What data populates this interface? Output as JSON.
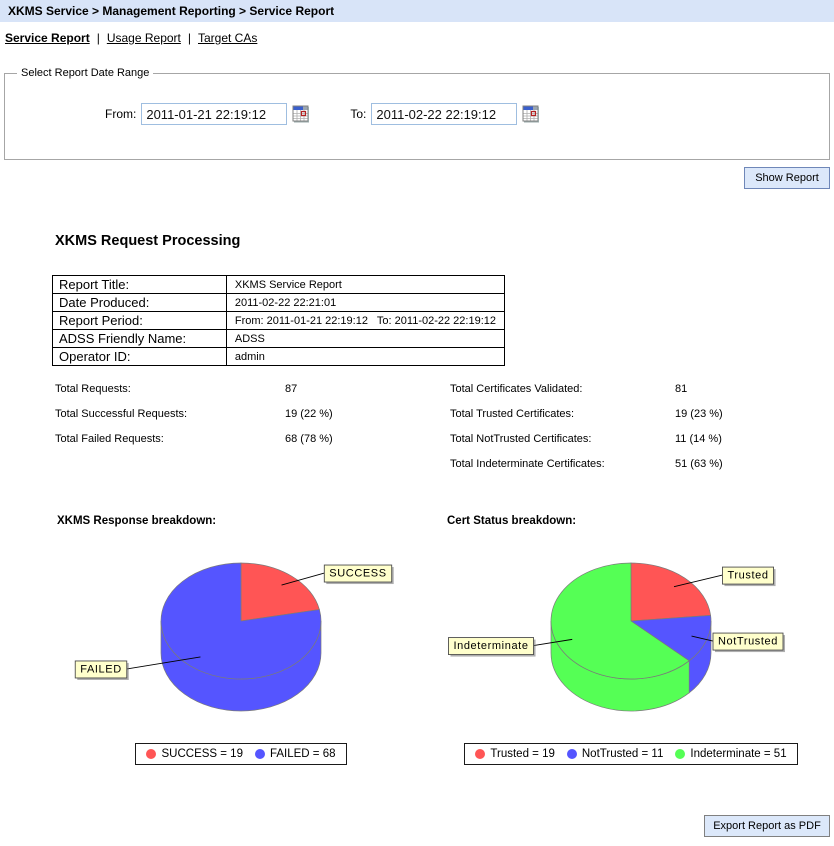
{
  "topbar": {
    "breadcrumb": "XKMS Service > Management Reporting > Service Report",
    "bg": "#D8E4F8"
  },
  "tabs": [
    {
      "label": "Service Report",
      "active": true
    },
    {
      "label": "Usage Report",
      "active": false
    },
    {
      "label": "Target CAs",
      "active": false
    }
  ],
  "tab_separator": "|",
  "date_range": {
    "legend": "Select Report Date Range",
    "from_label": "From:",
    "from_value": "2011-01-21 22:19:12",
    "to_label": "To:",
    "to_value": "2011-02-22 22:19:12"
  },
  "buttons": {
    "show_report": "Show Report",
    "export_pdf": "Export Report as PDF"
  },
  "report": {
    "section_title": "XKMS Request Processing",
    "table_rows": [
      {
        "label": "Report Title:",
        "value": "XKMS Service Report"
      },
      {
        "label": "Date Produced:",
        "value": "2011-02-22 22:21:01"
      },
      {
        "label": "Report Period:",
        "value": "From: 2011-01-21 22:19:12   To: 2011-02-22 22:19:12"
      },
      {
        "label": "ADSS Friendly Name:",
        "value": "ADSS"
      },
      {
        "label": "Operator ID:",
        "value": "admin"
      }
    ],
    "stats_left": [
      {
        "label": "Total Requests:",
        "value": "87"
      },
      {
        "label": "Total Successful Requests:",
        "value": "19 (22 %)"
      },
      {
        "label": "Total Failed Requests:",
        "value": "68 (78 %)"
      }
    ],
    "stats_right": [
      {
        "label": "Total Certificates Validated:",
        "value": "81"
      },
      {
        "label": "Total Trusted Certificates:",
        "value": "19  (23 %)"
      },
      {
        "label": "Total NotTrusted Certificates:",
        "value": "11  (14 %)"
      },
      {
        "label": "Total Indeterminate Certificates:",
        "value": "51  (63 %)"
      }
    ]
  },
  "chart_data": [
    {
      "type": "pie",
      "style": "3d",
      "title": "XKMS Response breakdown:",
      "slices": [
        {
          "label": "SUCCESS",
          "value": 19,
          "color": "#FF5555"
        },
        {
          "label": "FAILED",
          "value": 68,
          "color": "#5555FF"
        }
      ],
      "legend_entries": [
        {
          "text": "SUCCESS = 19",
          "color": "#FF5555"
        },
        {
          "text": "FAILED = 68",
          "color": "#5555FF"
        }
      ],
      "legend_position": "bottom",
      "label_box_color": "#FFFFCC"
    },
    {
      "type": "pie",
      "style": "3d",
      "title": "Cert Status breakdown:",
      "slices": [
        {
          "label": "Trusted",
          "value": 19,
          "color": "#FF5555"
        },
        {
          "label": "NotTrusted",
          "value": 11,
          "color": "#5555FF"
        },
        {
          "label": "Indeterminate",
          "value": 51,
          "color": "#55FF55"
        }
      ],
      "legend_entries": [
        {
          "text": "Trusted = 19",
          "color": "#FF5555"
        },
        {
          "text": "NotTrusted = 11",
          "color": "#5555FF"
        },
        {
          "text": "Indeterminate = 51",
          "color": "#55FF55"
        }
      ],
      "legend_position": "bottom",
      "label_box_color": "#FFFFCC"
    }
  ],
  "colors": {
    "topbar_bg": "#D8E4F8",
    "button_bg": "#DCE8FA",
    "input_border": "#9FBEE0",
    "pie_red": "#FF5555",
    "pie_blue": "#5555FF",
    "pie_green": "#55FF55",
    "pie_label_box": "#FFFFCC"
  }
}
